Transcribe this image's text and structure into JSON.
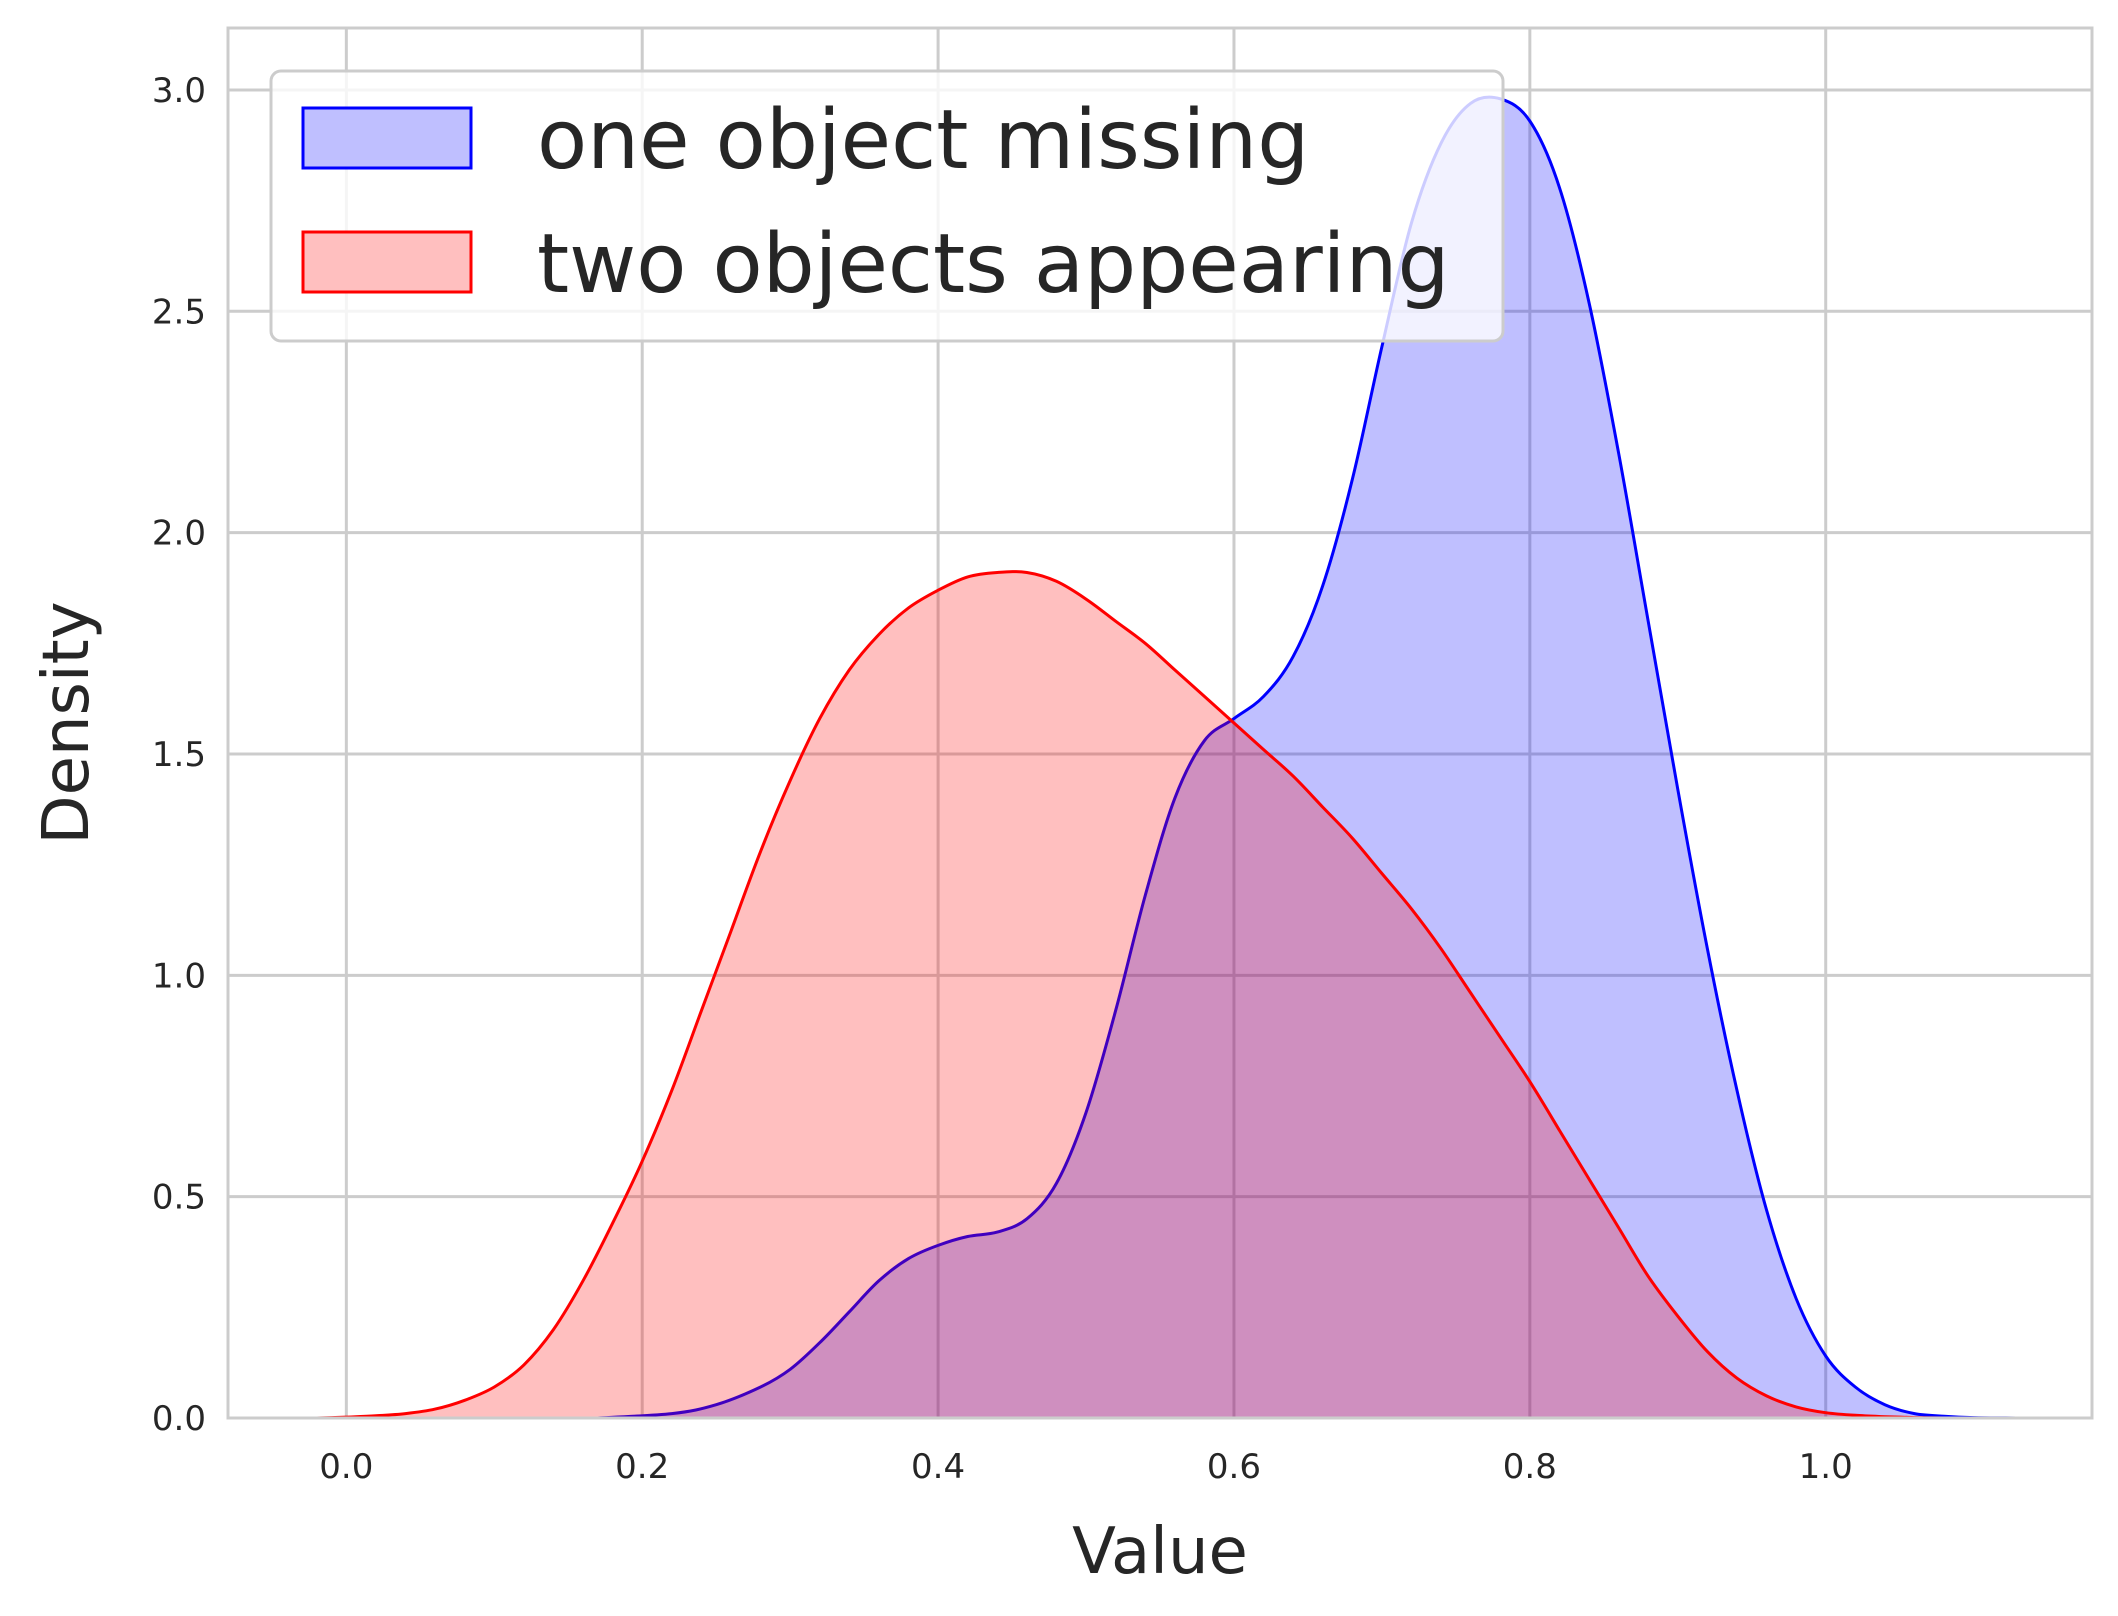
{
  "chart_data": {
    "type": "area",
    "title": "",
    "xlabel": "Value",
    "ylabel": "Density",
    "xlim": [
      -0.08,
      1.18
    ],
    "ylim": [
      0,
      3.14
    ],
    "x_ticks": [
      "0.0",
      "0.2",
      "0.4",
      "0.6",
      "0.8",
      "1.0"
    ],
    "y_ticks": [
      "0.0",
      "0.5",
      "1.0",
      "1.5",
      "2.0",
      "2.5",
      "3.0"
    ],
    "grid": true,
    "legend_position": "upper-left",
    "series": [
      {
        "name": "one object missing",
        "color": "#0000ff",
        "fill": "#bfbfff",
        "x": [
          0.17,
          0.22,
          0.25,
          0.28,
          0.3,
          0.32,
          0.34,
          0.36,
          0.38,
          0.4,
          0.42,
          0.44,
          0.46,
          0.48,
          0.5,
          0.52,
          0.54,
          0.56,
          0.58,
          0.6,
          0.62,
          0.64,
          0.66,
          0.68,
          0.7,
          0.72,
          0.74,
          0.76,
          0.78,
          0.8,
          0.82,
          0.84,
          0.86,
          0.88,
          0.9,
          0.92,
          0.94,
          0.96,
          0.98,
          1.0,
          1.02,
          1.04,
          1.06,
          1.08,
          1.1,
          1.13
        ],
        "y": [
          0.0,
          0.01,
          0.03,
          0.07,
          0.11,
          0.17,
          0.24,
          0.31,
          0.36,
          0.39,
          0.41,
          0.42,
          0.45,
          0.53,
          0.69,
          0.92,
          1.18,
          1.4,
          1.53,
          1.58,
          1.63,
          1.72,
          1.88,
          2.12,
          2.42,
          2.7,
          2.88,
          2.97,
          2.98,
          2.93,
          2.78,
          2.52,
          2.18,
          1.8,
          1.42,
          1.06,
          0.74,
          0.47,
          0.27,
          0.14,
          0.07,
          0.03,
          0.01,
          0.004,
          0.001,
          0.0
        ]
      },
      {
        "name": "two objects appearing",
        "color": "#ff0000",
        "fill": "#ffbfbf",
        "x": [
          -0.02,
          0.0,
          0.02,
          0.04,
          0.06,
          0.08,
          0.1,
          0.12,
          0.14,
          0.16,
          0.18,
          0.2,
          0.22,
          0.24,
          0.26,
          0.28,
          0.3,
          0.32,
          0.34,
          0.36,
          0.38,
          0.4,
          0.42,
          0.44,
          0.46,
          0.48,
          0.5,
          0.52,
          0.54,
          0.56,
          0.58,
          0.6,
          0.62,
          0.64,
          0.66,
          0.68,
          0.7,
          0.72,
          0.74,
          0.76,
          0.78,
          0.8,
          0.82,
          0.84,
          0.86,
          0.88,
          0.9,
          0.92,
          0.94,
          0.96,
          0.98,
          1.0,
          1.02,
          1.04,
          1.06,
          1.08
        ],
        "y": [
          0.0,
          0.002,
          0.005,
          0.01,
          0.02,
          0.04,
          0.07,
          0.12,
          0.2,
          0.31,
          0.44,
          0.58,
          0.74,
          0.92,
          1.1,
          1.28,
          1.44,
          1.58,
          1.69,
          1.77,
          1.83,
          1.87,
          1.9,
          1.91,
          1.91,
          1.89,
          1.85,
          1.8,
          1.75,
          1.69,
          1.63,
          1.57,
          1.51,
          1.45,
          1.38,
          1.31,
          1.23,
          1.15,
          1.06,
          0.96,
          0.86,
          0.76,
          0.65,
          0.54,
          0.43,
          0.32,
          0.23,
          0.15,
          0.09,
          0.05,
          0.025,
          0.012,
          0.006,
          0.003,
          0.001,
          0.0
        ]
      }
    ]
  }
}
